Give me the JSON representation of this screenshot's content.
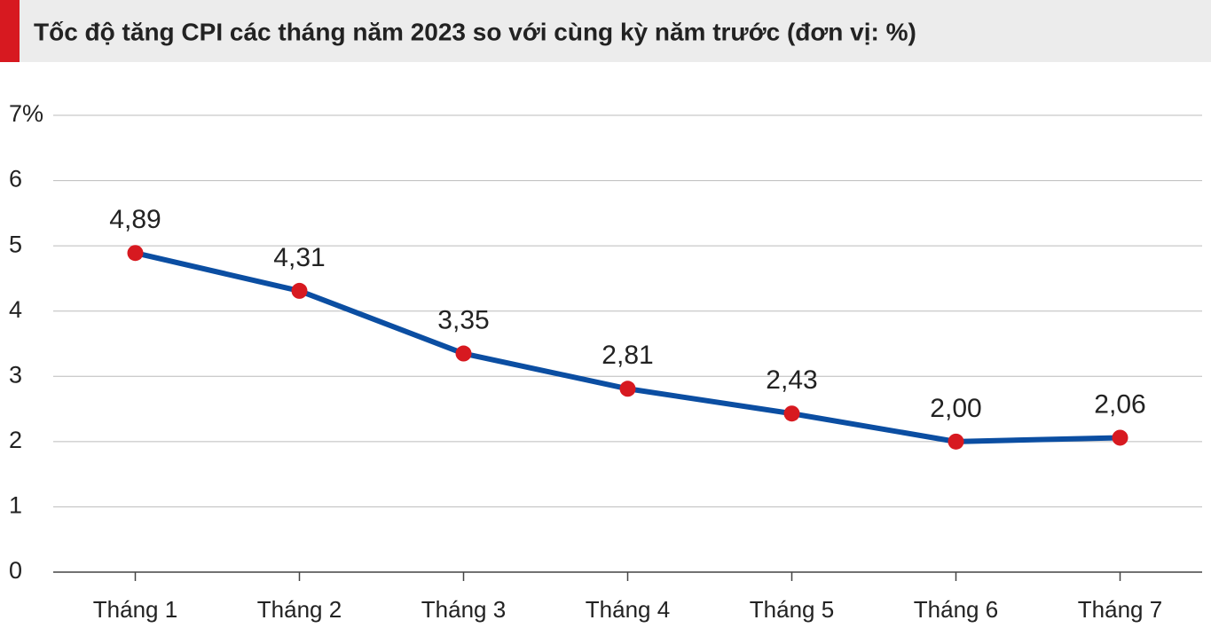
{
  "chart_data": {
    "type": "line",
    "title": "Tốc độ tăng CPI các tháng năm 2023 so với cùng kỳ năm trước (đơn vị: %)",
    "categories": [
      "Tháng 1",
      "Tháng 2",
      "Tháng 3",
      "Tháng 4",
      "Tháng 5",
      "Tháng 6",
      "Tháng 7"
    ],
    "series": [
      {
        "color": "#0b4ea2",
        "marker_color": "#d71920",
        "values": [
          4.89,
          4.31,
          3.35,
          2.81,
          2.43,
          2.0,
          2.06
        ],
        "value_labels": [
          "4,89",
          "4,31",
          "3,35",
          "2,81",
          "2,43",
          "2,00",
          "2,06"
        ]
      }
    ],
    "ylim": [
      0,
      7
    ],
    "yticks": [
      0,
      1,
      2,
      3,
      4,
      5,
      6,
      {
        "value": 7,
        "label": "7%"
      }
    ],
    "grid": true
  }
}
